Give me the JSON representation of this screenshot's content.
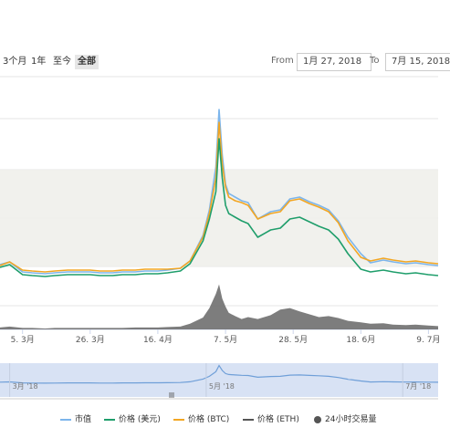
{
  "toolbar": {
    "ranges": [
      "3个月",
      "1年",
      "至今",
      "全部"
    ],
    "active": "全部",
    "from_label": "From",
    "from_value": "1月 27, 2018",
    "to_label": "To",
    "to_value": "7月 15, 2018"
  },
  "legend": {
    "items": [
      {
        "label": "市值",
        "color": "#7cb5ec"
      },
      {
        "label": "价格 (美元)",
        "color": "#1f9e6b"
      },
      {
        "label": "价格 (BTC)",
        "color": "#f2a623"
      },
      {
        "label": "价格 (ETH)",
        "color": "#555555"
      },
      {
        "label": "24小时交易量",
        "color": "#555555"
      }
    ]
  },
  "chart_data": {
    "type": "line",
    "title": "",
    "x": [
      "2018-02-26",
      "2018-03-01",
      "2018-03-05",
      "2018-03-08",
      "2018-03-12",
      "2018-03-15",
      "2018-03-19",
      "2018-03-22",
      "2018-03-26",
      "2018-03-29",
      "2018-04-02",
      "2018-04-05",
      "2018-04-09",
      "2018-04-12",
      "2018-04-16",
      "2018-04-19",
      "2018-04-23",
      "2018-04-26",
      "2018-04-30",
      "2018-05-02",
      "2018-05-04",
      "2018-05-05",
      "2018-05-06",
      "2018-05-07",
      "2018-05-08",
      "2018-05-10",
      "2018-05-12",
      "2018-05-14",
      "2018-05-17",
      "2018-05-21",
      "2018-05-24",
      "2018-05-27",
      "2018-05-30",
      "2018-06-02",
      "2018-06-05",
      "2018-06-08",
      "2018-06-11",
      "2018-06-14",
      "2018-06-18",
      "2018-06-21",
      "2018-06-25",
      "2018-06-28",
      "2018-07-02",
      "2018-07-05",
      "2018-07-09",
      "2018-07-12"
    ],
    "series": [
      {
        "name": "市值",
        "values": [
          30,
          33,
          22,
          21,
          20,
          21,
          22,
          22,
          22,
          21,
          21,
          22,
          22,
          23,
          23,
          24,
          26,
          34,
          62,
          90,
          137,
          200,
          150,
          118,
          108,
          104,
          100,
          98,
          80,
          88,
          90,
          102,
          104,
          99,
          95,
          90,
          78,
          60,
          42,
          32,
          35,
          33,
          31,
          32,
          30,
          29
        ]
      },
      {
        "name": "价格 (美元)",
        "values": [
          27,
          30,
          19,
          18,
          17,
          18,
          19,
          19,
          19,
          18,
          18,
          19,
          19,
          20,
          20,
          21,
          23,
          31,
          56,
          80,
          110,
          168,
          125,
          95,
          86,
          82,
          78,
          75,
          60,
          68,
          70,
          80,
          82,
          77,
          72,
          68,
          58,
          42,
          25,
          22,
          24,
          22,
          20,
          21,
          19,
          18
        ]
      },
      {
        "name": "价格 (BTC)",
        "values": [
          29,
          33,
          24,
          23,
          22,
          23,
          24,
          24,
          24,
          23,
          23,
          24,
          24,
          25,
          25,
          25,
          26,
          34,
          60,
          86,
          125,
          186,
          140,
          115,
          104,
          100,
          98,
          95,
          80,
          86,
          88,
          100,
          102,
          97,
          93,
          88,
          76,
          56,
          38,
          34,
          37,
          35,
          33,
          34,
          32,
          31
        ]
      },
      {
        "name": "24小时交易量",
        "values": [
          0.4,
          0.6,
          0.3,
          0.3,
          0.2,
          0.3,
          0.3,
          0.3,
          0.3,
          0.3,
          0.3,
          0.3,
          0.4,
          0.4,
          0.4,
          0.5,
          0.6,
          1.2,
          2.5,
          4.5,
          7.5,
          9.5,
          6.5,
          4.8,
          3.5,
          2.8,
          2.2,
          2.6,
          2.2,
          3.0,
          4.2,
          4.5,
          3.8,
          3.2,
          2.6,
          2.8,
          2.4,
          1.8,
          1.5,
          1.2,
          1.3,
          1.0,
          0.9,
          1.0,
          0.8,
          0.7
        ]
      }
    ],
    "x_tick_labels": [
      "5. 3月",
      "26. 3月",
      "16. 4月",
      "7. 5月",
      "28. 5月",
      "18. 6月",
      "9. 7月"
    ],
    "navigator_labels": [
      "3月 '18",
      "5月 '18",
      "7月 '18"
    ],
    "ylim": [
      0,
      215
    ],
    "grid": true
  }
}
